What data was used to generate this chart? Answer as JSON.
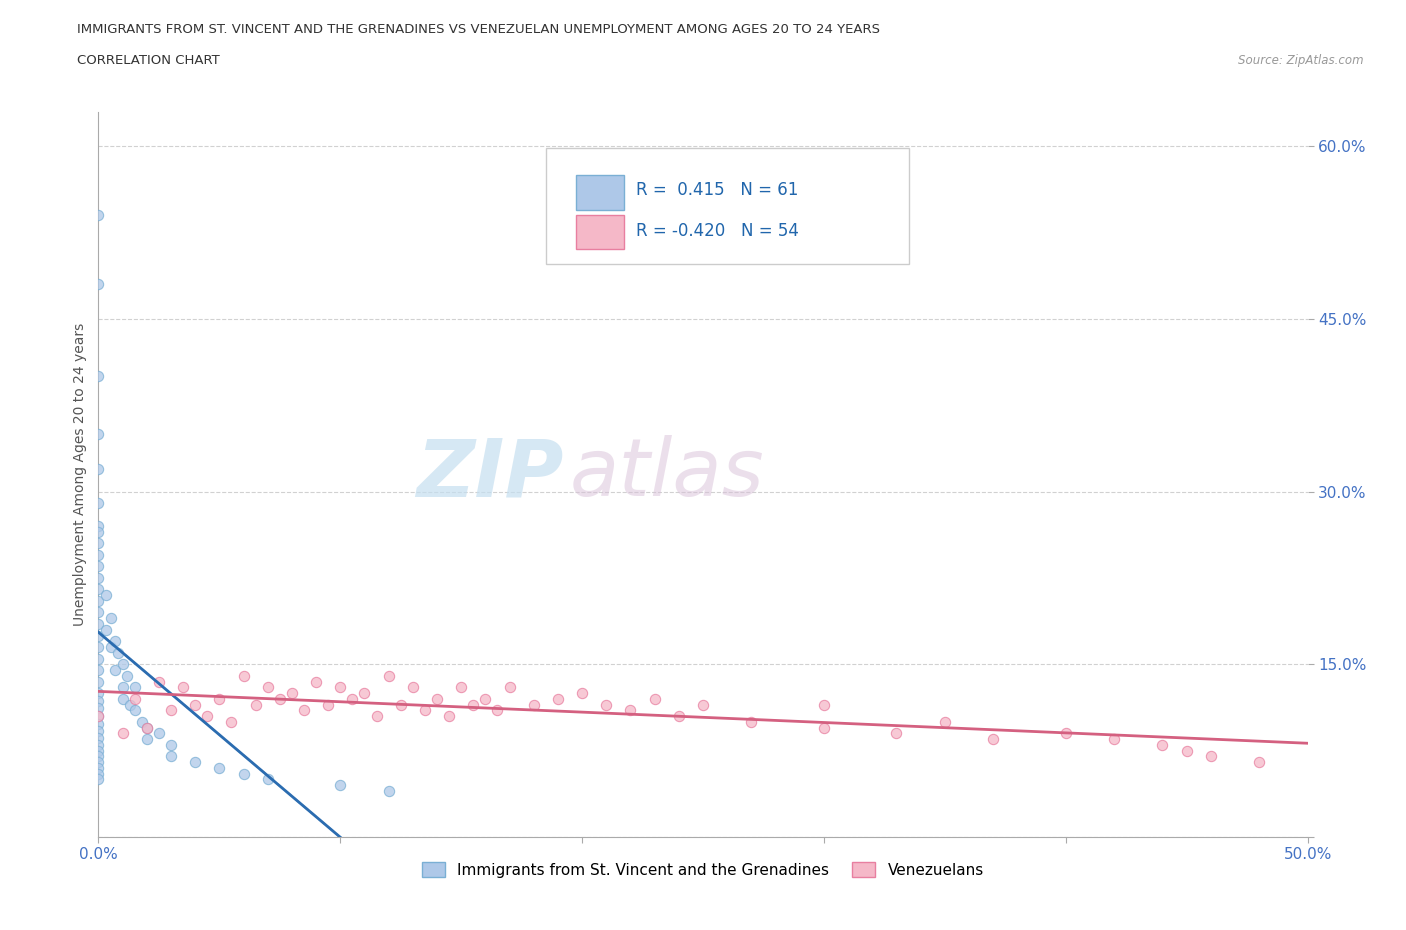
{
  "title_line1": "IMMIGRANTS FROM ST. VINCENT AND THE GRENADINES VS VENEZUELAN UNEMPLOYMENT AMONG AGES 20 TO 24 YEARS",
  "title_line2": "CORRELATION CHART",
  "source_text": "Source: ZipAtlas.com",
  "ylabel": "Unemployment Among Ages 20 to 24 years",
  "xlim": [
    0.0,
    0.5
  ],
  "ylim": [
    0.0,
    0.63
  ],
  "blue_scatter_color": "#aec8e8",
  "blue_edge_color": "#7aafd4",
  "pink_scatter_color": "#f5b8c8",
  "pink_edge_color": "#e87fa0",
  "blue_line_color": "#2b6cb0",
  "pink_line_color": "#d46080",
  "R_blue": 0.415,
  "N_blue": 61,
  "R_pink": -0.42,
  "N_pink": 54,
  "legend_label_blue": "Immigrants from St. Vincent and the Grenadines",
  "legend_label_pink": "Venezuelans",
  "watermark_zip": "ZIP",
  "watermark_atlas": "atlas",
  "grid_color": "#cccccc",
  "tick_color": "#4472c4",
  "blue_x": [
    0.0,
    0.0,
    0.0,
    0.0,
    0.0,
    0.0,
    0.0,
    0.0,
    0.0,
    0.0,
    0.0,
    0.0,
    0.0,
    0.0,
    0.0,
    0.0,
    0.0,
    0.0,
    0.0,
    0.0,
    0.0,
    0.0,
    0.0,
    0.0,
    0.0,
    0.0,
    0.0,
    0.0,
    0.0,
    0.0,
    0.0,
    0.0,
    0.0,
    0.0,
    0.0,
    0.003,
    0.003,
    0.005,
    0.005,
    0.007,
    0.007,
    0.008,
    0.01,
    0.01,
    0.01,
    0.012,
    0.013,
    0.015,
    0.015,
    0.018,
    0.02,
    0.02,
    0.025,
    0.03,
    0.03,
    0.04,
    0.05,
    0.06,
    0.07,
    0.1,
    0.12
  ],
  "blue_y": [
    0.54,
    0.48,
    0.4,
    0.35,
    0.32,
    0.29,
    0.27,
    0.265,
    0.255,
    0.245,
    0.235,
    0.225,
    0.215,
    0.205,
    0.195,
    0.185,
    0.175,
    0.165,
    0.155,
    0.145,
    0.135,
    0.125,
    0.118,
    0.112,
    0.105,
    0.098,
    0.092,
    0.086,
    0.08,
    0.075,
    0.07,
    0.065,
    0.06,
    0.055,
    0.05,
    0.21,
    0.18,
    0.19,
    0.165,
    0.17,
    0.145,
    0.16,
    0.15,
    0.13,
    0.12,
    0.14,
    0.115,
    0.13,
    0.11,
    0.1,
    0.095,
    0.085,
    0.09,
    0.08,
    0.07,
    0.065,
    0.06,
    0.055,
    0.05,
    0.045,
    0.04
  ],
  "pink_x": [
    0.0,
    0.01,
    0.015,
    0.02,
    0.025,
    0.03,
    0.035,
    0.04,
    0.045,
    0.05,
    0.055,
    0.06,
    0.065,
    0.07,
    0.075,
    0.08,
    0.085,
    0.09,
    0.095,
    0.1,
    0.105,
    0.11,
    0.115,
    0.12,
    0.125,
    0.13,
    0.135,
    0.14,
    0.145,
    0.15,
    0.155,
    0.16,
    0.165,
    0.17,
    0.18,
    0.19,
    0.2,
    0.21,
    0.22,
    0.23,
    0.24,
    0.25,
    0.27,
    0.3,
    0.3,
    0.33,
    0.35,
    0.37,
    0.4,
    0.42,
    0.44,
    0.45,
    0.46,
    0.48
  ],
  "pink_y": [
    0.105,
    0.09,
    0.12,
    0.095,
    0.135,
    0.11,
    0.13,
    0.115,
    0.105,
    0.12,
    0.1,
    0.14,
    0.115,
    0.13,
    0.12,
    0.125,
    0.11,
    0.135,
    0.115,
    0.13,
    0.12,
    0.125,
    0.105,
    0.14,
    0.115,
    0.13,
    0.11,
    0.12,
    0.105,
    0.13,
    0.115,
    0.12,
    0.11,
    0.13,
    0.115,
    0.12,
    0.125,
    0.115,
    0.11,
    0.12,
    0.105,
    0.115,
    0.1,
    0.115,
    0.095,
    0.09,
    0.1,
    0.085,
    0.09,
    0.085,
    0.08,
    0.075,
    0.07,
    0.065
  ]
}
